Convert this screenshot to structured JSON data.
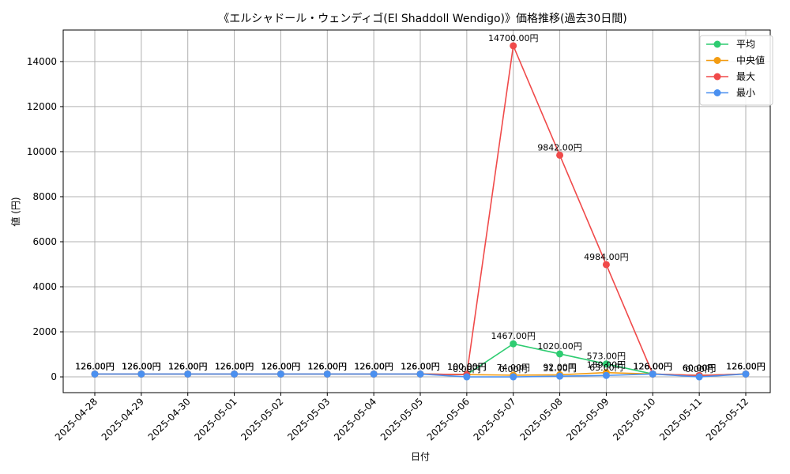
{
  "chart_data": {
    "type": "line",
    "title": "《エルシャドール・ウェンディゴ(El Shaddoll Wendigo)》価格推移(過去30日間)",
    "xlabel": "日付",
    "ylabel": "値 (円)",
    "ylim": [
      -700,
      15400
    ],
    "yticks": [
      0,
      2000,
      4000,
      6000,
      8000,
      10000,
      12000,
      14000
    ],
    "grid": true,
    "legend_position": "top-right",
    "label_suffix": "円",
    "categories": [
      "2025-04-28",
      "2025-04-29",
      "2025-04-30",
      "2025-05-01",
      "2025-05-02",
      "2025-05-03",
      "2025-05-04",
      "2025-05-05",
      "2025-05-06",
      "2025-05-07",
      "2025-05-08",
      "2025-05-09",
      "2025-05-10",
      "2025-05-11",
      "2025-05-12"
    ],
    "series": [
      {
        "name": "平均",
        "color": "#2ecc71",
        "values": [
          126,
          126,
          126,
          126,
          126,
          126,
          126,
          126,
          100,
          1467,
          1020,
          573,
          126,
          60,
          126
        ]
      },
      {
        "name": "中央値",
        "color": "#f39c12",
        "values": [
          126,
          126,
          126,
          126,
          126,
          126,
          126,
          126,
          100,
          74,
          92,
          189,
          126,
          60,
          126
        ]
      },
      {
        "name": "最大",
        "color": "#f04a4a",
        "values": [
          126,
          126,
          126,
          126,
          126,
          126,
          126,
          126,
          100,
          14700,
          9842,
          4984,
          126,
          60,
          126
        ]
      },
      {
        "name": "最小",
        "color": "#4a90f0",
        "values": [
          126,
          126,
          126,
          126,
          126,
          126,
          126,
          126,
          0,
          0,
          31,
          63,
          126,
          0,
          126
        ]
      }
    ]
  }
}
